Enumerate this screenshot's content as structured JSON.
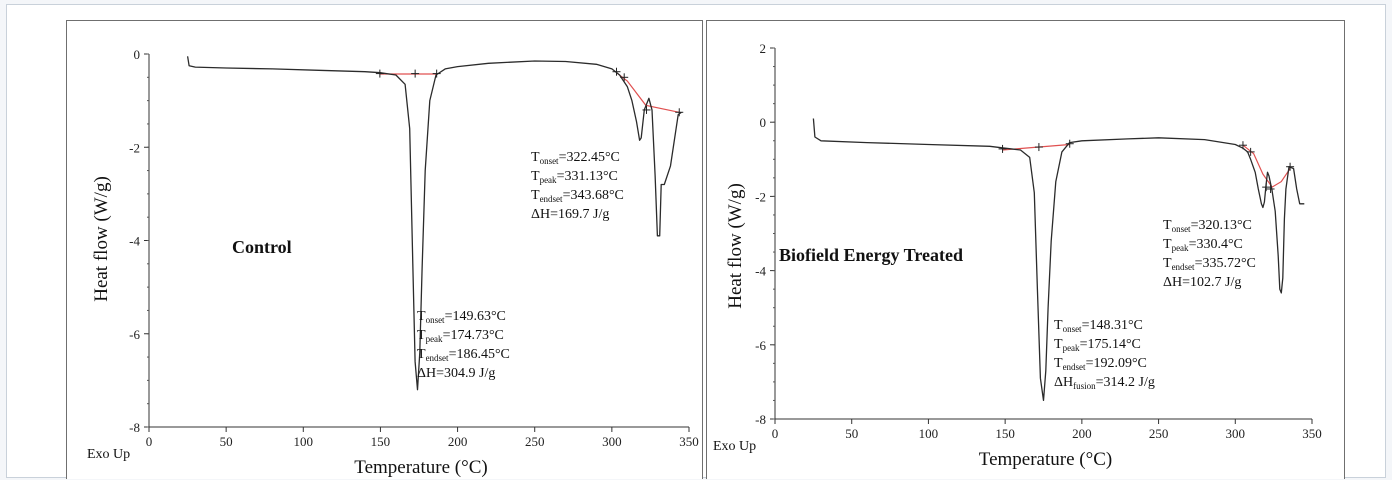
{
  "chart_data": [
    {
      "type": "line",
      "sample_label": "Control",
      "xlabel": "Temperature (°C)",
      "ylabel": "Heat flow (W/g)",
      "xlim": [
        0,
        350
      ],
      "ylim": [
        -8,
        0
      ],
      "xticks": [
        0,
        50,
        100,
        150,
        200,
        250,
        300,
        350
      ],
      "yticks": [
        0,
        -2,
        -4,
        -6,
        -8
      ],
      "exo_label": "Exo Up",
      "colors": {
        "curve": "#2b2b2b",
        "baseline": "#e05050"
      },
      "series": [
        {
          "x": [
            25,
            26,
            30,
            50,
            80,
            110,
            140,
            150,
            160,
            166,
            169,
            171,
            172.5,
            174,
            175.5,
            177,
            179,
            182,
            186,
            192,
            200,
            220,
            250,
            270,
            290,
            300,
            305,
            310,
            313,
            316,
            318,
            319,
            321,
            324,
            326,
            328,
            329.5,
            331,
            332,
            334,
            338,
            343,
            345
          ],
          "y": [
            -0.05,
            -0.25,
            -0.28,
            -0.3,
            -0.32,
            -0.35,
            -0.38,
            -0.4,
            -0.45,
            -0.65,
            -1.6,
            -4.5,
            -6.6,
            -7.2,
            -6.4,
            -4.6,
            -2.5,
            -1.0,
            -0.45,
            -0.32,
            -0.27,
            -0.2,
            -0.15,
            -0.16,
            -0.22,
            -0.32,
            -0.45,
            -0.7,
            -1.0,
            -1.45,
            -1.85,
            -1.8,
            -1.2,
            -0.95,
            -1.2,
            -2.6,
            -3.9,
            -3.9,
            -2.8,
            -2.8,
            -2.4,
            -1.3,
            -1.25
          ]
        }
      ],
      "baselines": [
        {
          "x": [
            149.63,
            186.45
          ],
          "y": [
            -0.43,
            -0.43
          ]
        },
        {
          "x": [
            303,
            310,
            322,
            343.68
          ],
          "y": [
            -0.4,
            -0.58,
            -1.1,
            -1.25
          ]
        }
      ],
      "markers": [
        {
          "x": 149.63,
          "y": -0.42
        },
        {
          "x": 172.5,
          "y": -0.42
        },
        {
          "x": 186.45,
          "y": -0.42
        },
        {
          "x": 303,
          "y": -0.38
        },
        {
          "x": 308,
          "y": -0.5
        },
        {
          "x": 322.45,
          "y": -1.2
        },
        {
          "x": 343.68,
          "y": -1.25
        }
      ],
      "annotations": [
        {
          "lines": [
            {
              "main": "T",
              "sub": "onset",
              "rest": "=149.63°C"
            },
            {
              "main": "T",
              "sub": "peak",
              "rest": "=174.73°C"
            },
            {
              "main": "T",
              "sub": "endset",
              "rest": "=186.45°C"
            },
            {
              "main": "ΔH=304.9 J/g",
              "sub": "",
              "rest": ""
            }
          ]
        },
        {
          "lines": [
            {
              "main": "T",
              "sub": "onset",
              "rest": "=322.45°C"
            },
            {
              "main": "T",
              "sub": "peak",
              "rest": "=331.13°C"
            },
            {
              "main": "T",
              "sub": "endset",
              "rest": "=343.68°C"
            },
            {
              "main": "ΔH=169.7 J/g",
              "sub": "",
              "rest": ""
            }
          ]
        }
      ]
    },
    {
      "type": "line",
      "sample_label": "Biofield Energy Treated",
      "xlabel": "Temperature (°C)",
      "ylabel": "Heat flow (W/g)",
      "xlim": [
        0,
        350
      ],
      "ylim": [
        -8,
        2
      ],
      "xticks": [
        0,
        50,
        100,
        150,
        200,
        250,
        300,
        350
      ],
      "yticks": [
        2,
        0,
        -2,
        -4,
        -6,
        -8
      ],
      "exo_label": "Exo Up",
      "colors": {
        "curve": "#2b2b2b",
        "baseline": "#e05050"
      },
      "series": [
        {
          "x": [
            25,
            26,
            30,
            60,
            100,
            140,
            150,
            160,
            166,
            169,
            171,
            173,
            175,
            176.5,
            178,
            180,
            183,
            187,
            192,
            200,
            230,
            250,
            280,
            300,
            305,
            308,
            310,
            313,
            315,
            317,
            318,
            319,
            320,
            321,
            322,
            324,
            326,
            328,
            329,
            330,
            331,
            332,
            333,
            335,
            338,
            340,
            342,
            345
          ],
          "y": [
            0.1,
            -0.4,
            -0.5,
            -0.55,
            -0.6,
            -0.65,
            -0.7,
            -0.75,
            -0.95,
            -1.9,
            -4.5,
            -6.9,
            -7.5,
            -6.7,
            -5.0,
            -3.2,
            -1.6,
            -0.8,
            -0.55,
            -0.5,
            -0.45,
            -0.42,
            -0.47,
            -0.6,
            -0.7,
            -0.8,
            -1.0,
            -1.35,
            -1.8,
            -2.2,
            -2.3,
            -2.15,
            -1.7,
            -1.35,
            -1.45,
            -1.85,
            -2.4,
            -3.6,
            -4.5,
            -4.6,
            -4.2,
            -2.6,
            -1.8,
            -1.2,
            -1.25,
            -1.8,
            -2.2,
            -2.2
          ]
        }
      ],
      "baselines": [
        {
          "x": [
            148.31,
            192.09
          ],
          "y": [
            -0.75,
            -0.6
          ]
        },
        {
          "x": [
            305,
            312,
            318,
            324,
            330,
            335.72
          ],
          "y": [
            -0.62,
            -0.85,
            -1.4,
            -1.75,
            -1.6,
            -1.25
          ]
        }
      ],
      "markers": [
        {
          "x": 148.31,
          "y": -0.72
        },
        {
          "x": 172,
          "y": -0.67
        },
        {
          "x": 192.09,
          "y": -0.58
        },
        {
          "x": 305,
          "y": -0.62
        },
        {
          "x": 310,
          "y": -0.8
        },
        {
          "x": 320.13,
          "y": -1.75
        },
        {
          "x": 323,
          "y": -1.8
        },
        {
          "x": 335.72,
          "y": -1.2
        }
      ],
      "annotations": [
        {
          "lines": [
            {
              "main": "T",
              "sub": "onset",
              "rest": "=148.31°C"
            },
            {
              "main": "T",
              "sub": "peak",
              "rest": "=175.14°C"
            },
            {
              "main": "T",
              "sub": "endset",
              "rest": "=192.09°C"
            },
            {
              "main": "ΔH",
              "sub": "fusion",
              "rest": "=314.2 J/g"
            }
          ]
        },
        {
          "lines": [
            {
              "main": "T",
              "sub": "onset",
              "rest": "=320.13°C"
            },
            {
              "main": "T",
              "sub": "peak",
              "rest": "=330.4°C"
            },
            {
              "main": "T",
              "sub": "endset",
              "rest": "=335.72°C"
            },
            {
              "main": "ΔH=102.7 J/g",
              "sub": "",
              "rest": ""
            }
          ]
        }
      ]
    }
  ]
}
